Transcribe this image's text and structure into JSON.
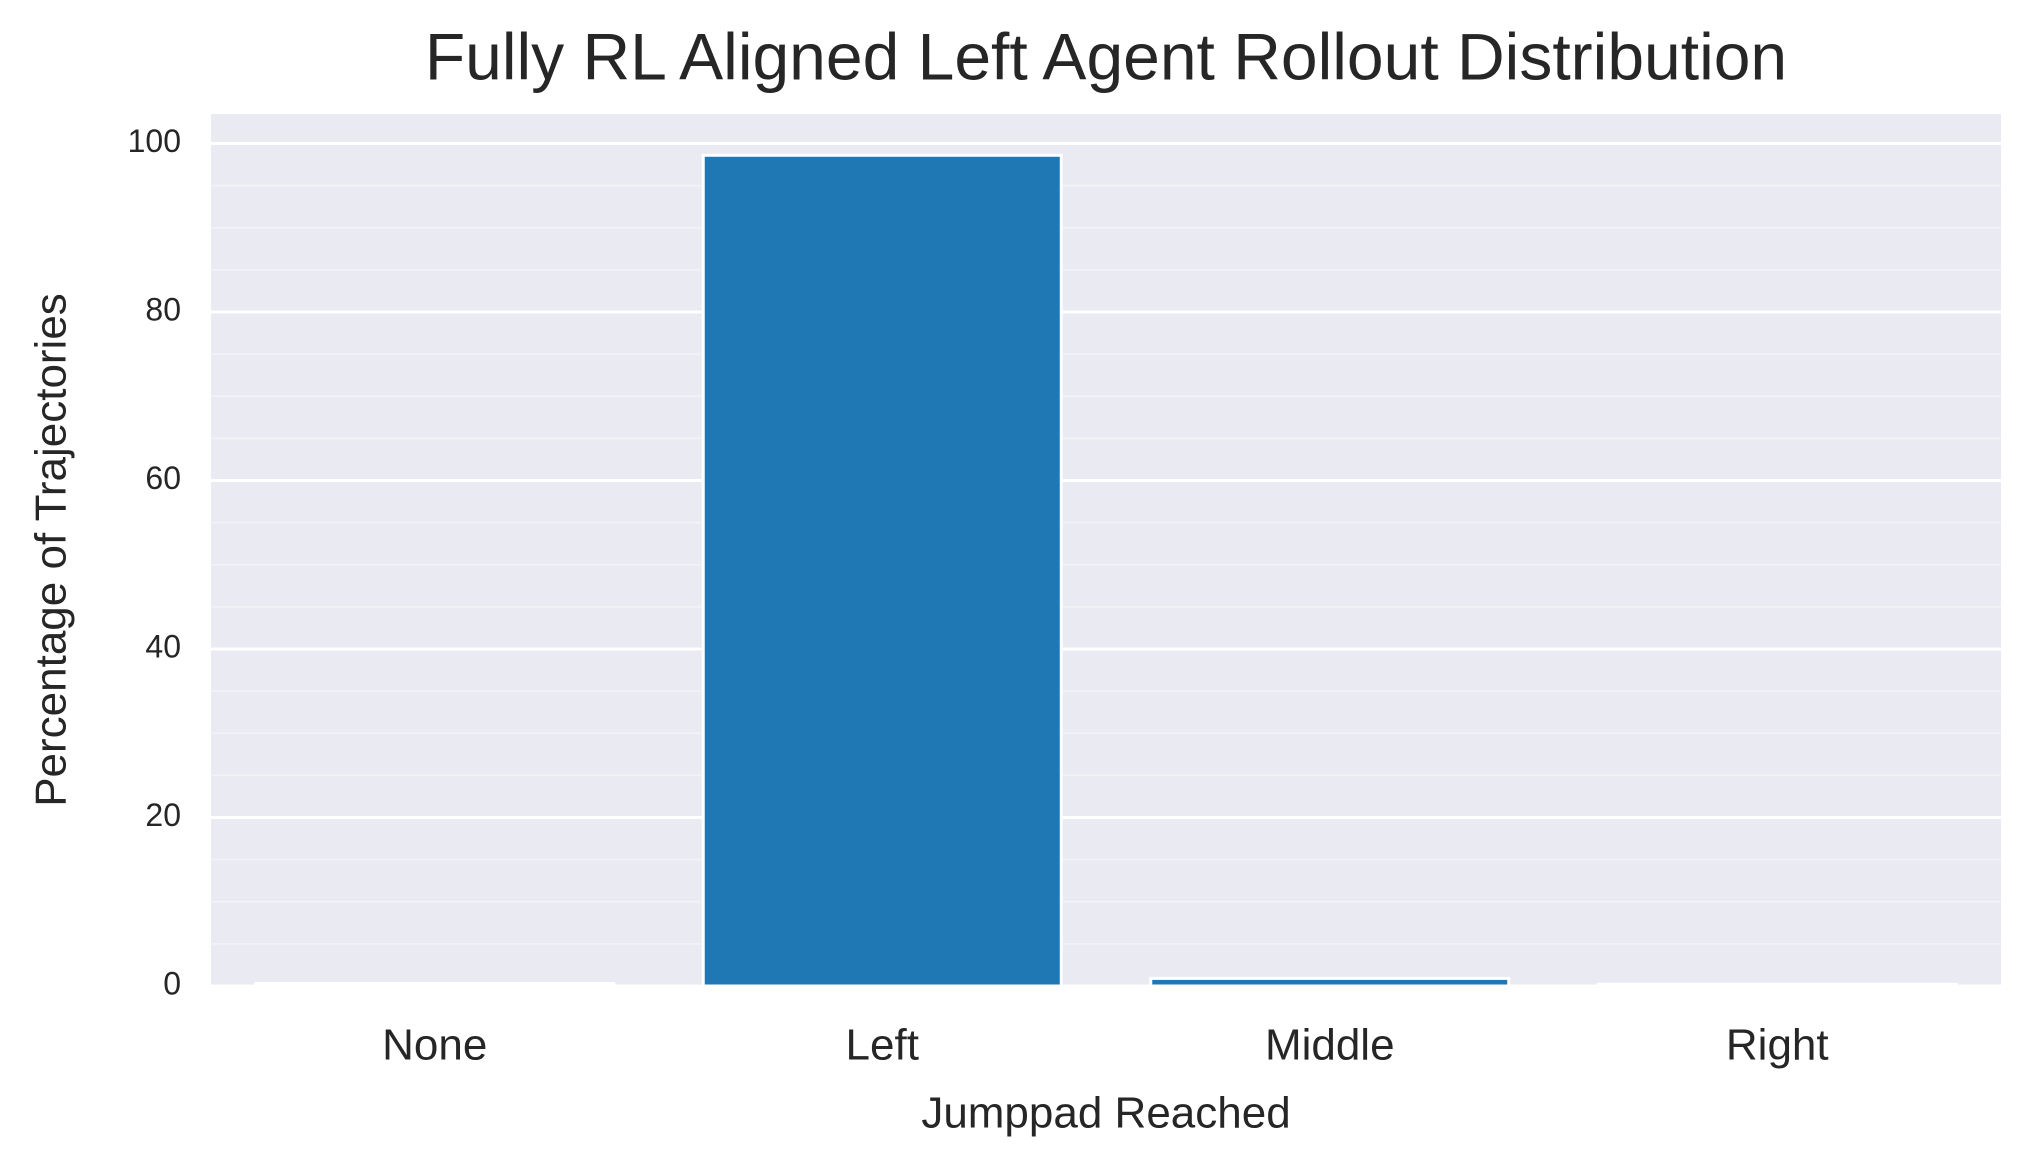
{
  "chart_data": {
    "type": "bar",
    "title": "Fully RL Aligned Left Agent Rollout Distribution",
    "xlabel": "Jumppad Reached",
    "ylabel": "Percentage of Trajectories",
    "categories": [
      "None",
      "Left",
      "Middle",
      "Right"
    ],
    "values": [
      0.3,
      98.6,
      0.9,
      0.2
    ],
    "color": "#1f77b4",
    "ylim": [
      0,
      103.5
    ],
    "yticks": [
      0,
      20,
      40,
      60,
      80,
      100
    ],
    "yminorticks": [
      5,
      10,
      15,
      25,
      30,
      35,
      45,
      50,
      55,
      65,
      70,
      75,
      85,
      90,
      95
    ],
    "grid": true
  }
}
